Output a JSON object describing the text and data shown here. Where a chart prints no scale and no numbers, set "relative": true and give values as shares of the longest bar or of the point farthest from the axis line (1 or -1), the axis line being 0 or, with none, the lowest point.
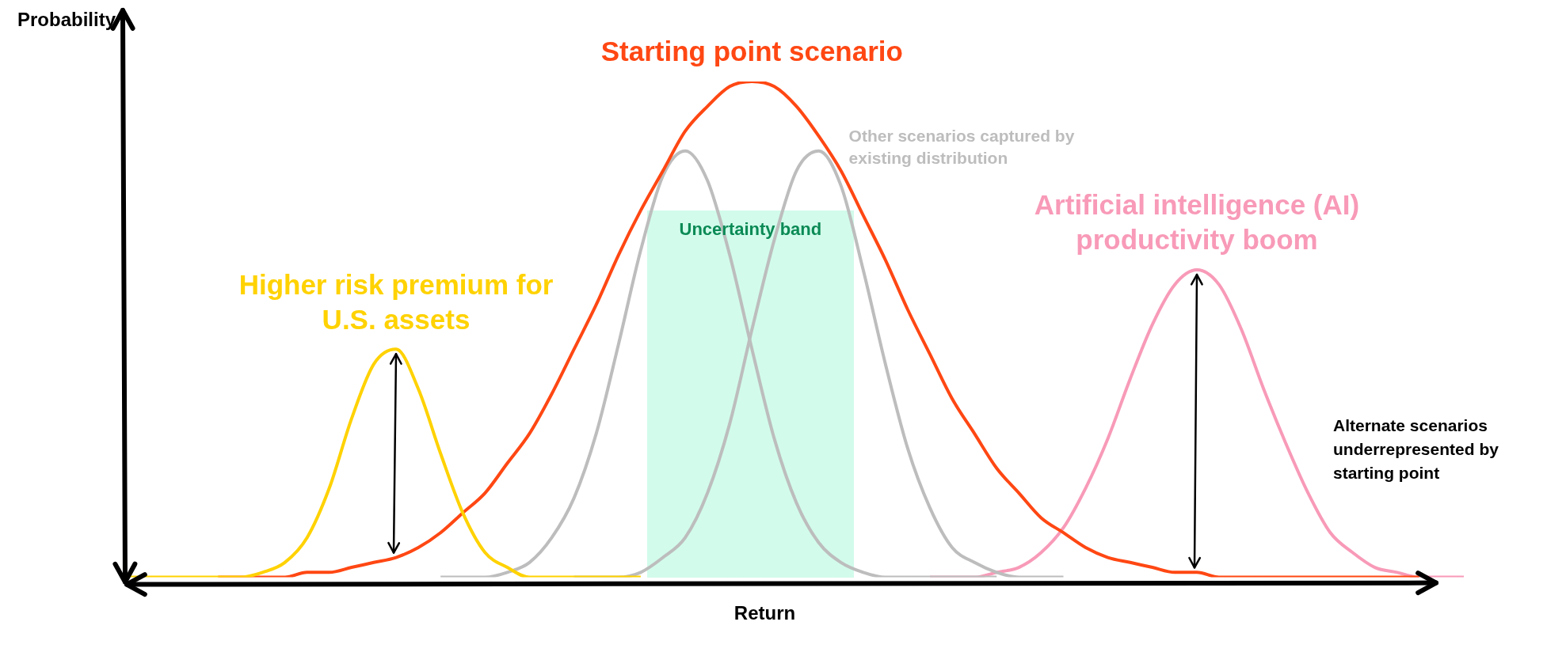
{
  "chart_data": {
    "type": "line",
    "relative": true,
    "xlabel": "Return",
    "ylabel": "Probability",
    "legend": false,
    "categories": [
      null,
      null,
      null,
      null,
      null,
      null,
      null,
      null,
      null,
      null,
      null,
      null,
      null,
      null,
      null,
      null,
      null,
      null,
      null,
      null,
      null,
      null,
      null,
      null,
      null,
      null,
      null,
      null,
      null,
      null,
      null,
      null,
      null,
      null,
      null,
      null,
      null,
      null,
      null,
      null,
      null,
      null,
      null,
      null,
      null,
      null,
      null,
      null,
      null,
      null,
      null,
      null,
      null,
      null,
      null,
      null,
      null,
      null,
      null,
      null,
      null
    ],
    "series": [
      {
        "name": "Higher risk premium for U.S. assets",
        "color": "#ffd200",
        "values": [
          0,
          0,
          0,
          0,
          0,
          0,
          0.01,
          0.03,
          0.08,
          0.18,
          0.32,
          0.43,
          0.46,
          0.38,
          0.25,
          0.13,
          0.05,
          0.02,
          0,
          0,
          0,
          0,
          0,
          0,
          null,
          null,
          null,
          null,
          null,
          null,
          null,
          null,
          null,
          null,
          null,
          null,
          null,
          null,
          null,
          null,
          null,
          null,
          null,
          null,
          null,
          null,
          null,
          null,
          null,
          null,
          null,
          null,
          null,
          null,
          null,
          null,
          null,
          null,
          null,
          null,
          null
        ]
      },
      {
        "name": "Starting point scenario",
        "color": "#ff4713",
        "values": [
          null,
          null,
          null,
          null,
          0,
          0,
          0,
          0,
          0.01,
          0.01,
          0.02,
          0.03,
          0.04,
          0.06,
          0.09,
          0.13,
          0.17,
          0.23,
          0.29,
          0.37,
          0.46,
          0.55,
          0.65,
          0.74,
          0.82,
          0.9,
          0.95,
          0.99,
          1,
          0.99,
          0.95,
          0.89,
          0.82,
          0.73,
          0.64,
          0.54,
          0.45,
          0.36,
          0.29,
          0.22,
          0.17,
          0.12,
          0.09,
          0.06,
          0.04,
          0.03,
          0.02,
          0.01,
          0.01,
          0,
          0,
          0,
          0,
          0,
          0,
          0,
          0,
          0,
          0,
          null,
          null
        ]
      },
      {
        "color": "#bdbdbd",
        "values": [
          null,
          null,
          null,
          null,
          null,
          null,
          null,
          null,
          null,
          null,
          null,
          null,
          null,
          null,
          0,
          0,
          0,
          0.01,
          0.03,
          0.08,
          0.16,
          0.29,
          0.47,
          0.66,
          0.81,
          0.86,
          0.8,
          0.65,
          0.46,
          0.28,
          0.15,
          0.07,
          0.03,
          0.01,
          0,
          0,
          0,
          0,
          0,
          0,
          null,
          null,
          null,
          null,
          null,
          null,
          null,
          null,
          null,
          null,
          null,
          null,
          null,
          null,
          null,
          null,
          null,
          null,
          null,
          null,
          null
        ]
      },
      {
        "name": "Other scenarios captured by existing distribution",
        "color": "#bdbdbd",
        "values": [
          null,
          null,
          null,
          null,
          null,
          null,
          null,
          null,
          null,
          null,
          null,
          null,
          null,
          null,
          null,
          null,
          null,
          null,
          null,
          null,
          0,
          0,
          0,
          0.01,
          0.04,
          0.08,
          0.17,
          0.31,
          0.5,
          0.68,
          0.82,
          0.86,
          0.79,
          0.62,
          0.43,
          0.26,
          0.14,
          0.06,
          0.03,
          0.01,
          0,
          0,
          0,
          null,
          null,
          null,
          null,
          null,
          null,
          null,
          null,
          null,
          null,
          null,
          null,
          null,
          null,
          null,
          null,
          null,
          null
        ]
      },
      {
        "name": "Artificial intelligence (AI) productivity boom",
        "color": "#f89ab8",
        "values": [
          null,
          null,
          null,
          null,
          null,
          null,
          null,
          null,
          null,
          null,
          null,
          null,
          null,
          null,
          null,
          null,
          null,
          null,
          null,
          null,
          null,
          null,
          null,
          null,
          null,
          null,
          null,
          null,
          null,
          null,
          null,
          null,
          null,
          null,
          null,
          null,
          0,
          0,
          0,
          0.01,
          0.02,
          0.05,
          0.1,
          0.18,
          0.28,
          0.4,
          0.51,
          0.59,
          0.62,
          0.59,
          0.5,
          0.38,
          0.27,
          0.17,
          0.09,
          0.05,
          0.02,
          0.01,
          0,
          0,
          0
        ]
      }
    ],
    "annotations": [
      "Uncertainty band",
      "Alternate scenarios underrepresented by starting point"
    ]
  }
}
